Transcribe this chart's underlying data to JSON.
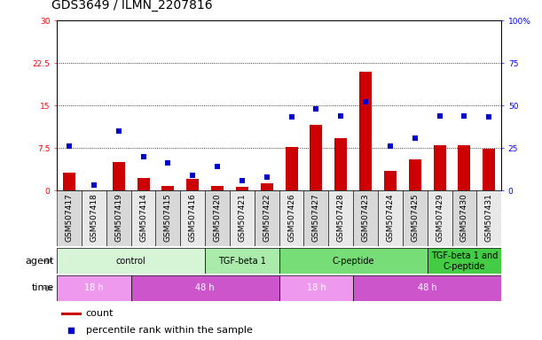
{
  "title": "GDS3649 / ILMN_2207816",
  "samples": [
    "GSM507417",
    "GSM507418",
    "GSM507419",
    "GSM507414",
    "GSM507415",
    "GSM507416",
    "GSM507420",
    "GSM507421",
    "GSM507422",
    "GSM507426",
    "GSM507427",
    "GSM507428",
    "GSM507423",
    "GSM507424",
    "GSM507425",
    "GSM507429",
    "GSM507430",
    "GSM507431"
  ],
  "counts": [
    3.2,
    0.0,
    5.0,
    2.2,
    0.8,
    2.0,
    0.8,
    0.6,
    1.2,
    7.6,
    11.5,
    9.2,
    21.0,
    3.5,
    5.5,
    7.9,
    7.9,
    7.3
  ],
  "percentiles": [
    26,
    3,
    35,
    20,
    16,
    9,
    14,
    6,
    8,
    43,
    48,
    44,
    52,
    26,
    31,
    44,
    44,
    43
  ],
  "count_color": "#cc0000",
  "percentile_color": "#0000cc",
  "ylim_left": [
    0,
    30
  ],
  "ylim_right": [
    0,
    100
  ],
  "yticks_left": [
    0,
    7.5,
    15,
    22.5,
    30
  ],
  "yticks_right": [
    0,
    25,
    50,
    75,
    100
  ],
  "ytick_labels_left": [
    "0",
    "7.5",
    "15",
    "22.5",
    "30"
  ],
  "ytick_labels_right": [
    "0",
    "25",
    "50",
    "75",
    "100%"
  ],
  "agent_groups": [
    {
      "label": "control",
      "start": 0,
      "end": 6,
      "color": "#d6f5d6"
    },
    {
      "label": "TGF-beta 1",
      "start": 6,
      "end": 9,
      "color": "#aaeaaa"
    },
    {
      "label": "C-peptide",
      "start": 9,
      "end": 15,
      "color": "#77dd77"
    },
    {
      "label": "TGF-beta 1 and\nC-peptide",
      "start": 15,
      "end": 18,
      "color": "#44cc44"
    }
  ],
  "time_groups": [
    {
      "label": "18 h",
      "start": 0,
      "end": 3,
      "color": "#ee99ee"
    },
    {
      "label": "48 h",
      "start": 3,
      "end": 9,
      "color": "#cc55cc"
    },
    {
      "label": "18 h",
      "start": 9,
      "end": 12,
      "color": "#ee99ee"
    },
    {
      "label": "48 h",
      "start": 12,
      "end": 18,
      "color": "#cc55cc"
    }
  ],
  "tick_fontsize": 6.5,
  "label_fontsize": 8,
  "annotation_fontsize": 8,
  "title_fontsize": 10,
  "label_count": "count",
  "label_percentile": "percentile rank within the sample"
}
